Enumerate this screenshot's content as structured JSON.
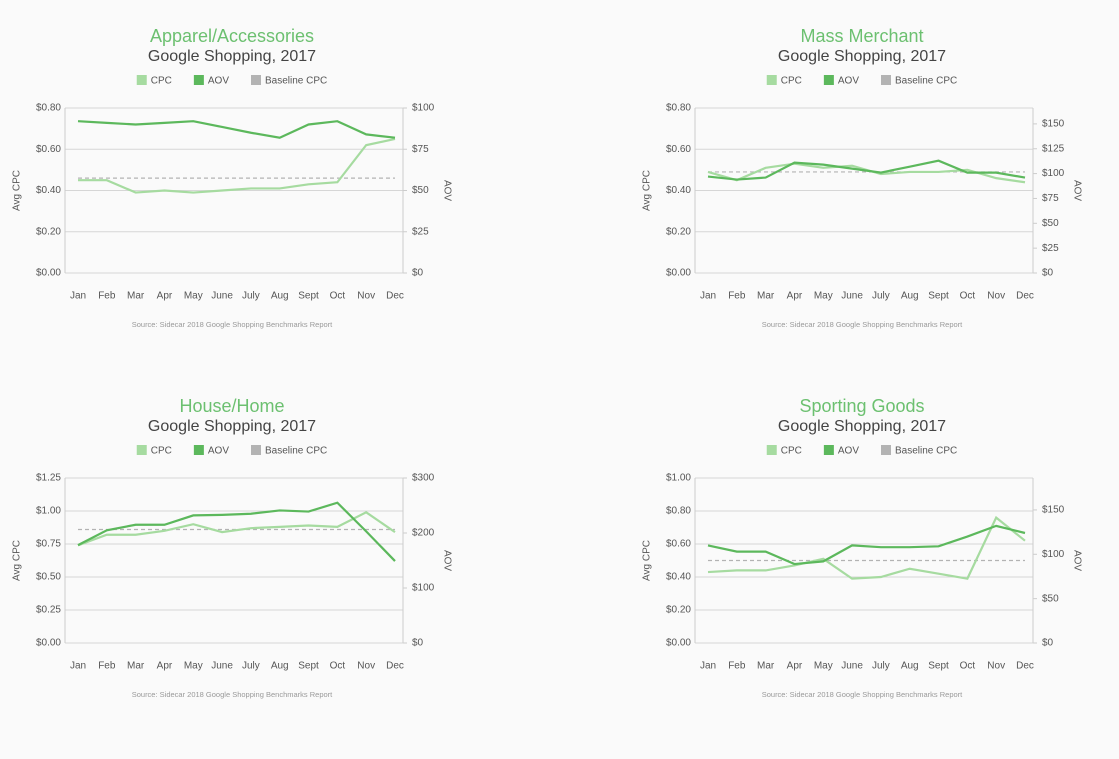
{
  "chart_data": [
    {
      "type": "line",
      "title": "Apparel/Accessories",
      "subtitle": "Google Shopping, 2017",
      "source": "Source: Sidecar 2018 Google Shopping Benchmarks Report",
      "ylabel": "Avg CPC",
      "y2label": "AOV",
      "grid": true,
      "categories": [
        "Jan",
        "Feb",
        "Mar",
        "Apr",
        "May",
        "June",
        "July",
        "Aug",
        "Sept",
        "Oct",
        "Nov",
        "Dec"
      ],
      "ylim": [
        0,
        0.8
      ],
      "yticks": [
        {
          "value": 0,
          "label": "$0.00"
        },
        {
          "value": 0.2,
          "label": "$0.20"
        },
        {
          "value": 0.4,
          "label": "$0.40"
        },
        {
          "value": 0.6,
          "label": "$0.60"
        },
        {
          "value": 0.8,
          "label": "$0.80"
        }
      ],
      "y2lim": [
        0,
        100
      ],
      "y2ticks": [
        {
          "value": 0,
          "label": "$0"
        },
        {
          "value": 25,
          "label": "$25"
        },
        {
          "value": 50,
          "label": "$50"
        },
        {
          "value": 75,
          "label": "$75"
        },
        {
          "value": 100,
          "label": "$100"
        }
      ],
      "series": [
        {
          "name": "CPC",
          "color": "#a6dba0",
          "values": [
            0.45,
            0.45,
            0.39,
            0.4,
            0.39,
            0.4,
            0.41,
            0.41,
            0.43,
            0.44,
            0.62,
            0.65
          ]
        },
        {
          "name": "AOV",
          "color": "#5cb85c",
          "axis": "y2",
          "values": [
            92,
            91,
            90,
            91,
            92,
            88.5,
            85,
            82,
            90,
            92,
            84,
            82
          ]
        },
        {
          "name": "Baseline CPC",
          "color": "#b3b3b3",
          "dashed": true,
          "values": [
            0.46,
            0.46,
            0.46,
            0.46,
            0.46,
            0.46,
            0.46,
            0.46,
            0.46,
            0.46,
            0.46,
            0.46
          ]
        }
      ]
    },
    {
      "type": "line",
      "title": "Mass Merchant",
      "subtitle": "Google Shopping, 2017",
      "source": "Source: Sidecar 2018 Google Shopping Benchmarks Report",
      "ylabel": "Avg CPC",
      "y2label": "AOV",
      "grid": true,
      "categories": [
        "Jan",
        "Feb",
        "Mar",
        "Apr",
        "May",
        "June",
        "July",
        "Aug",
        "Sept",
        "Oct",
        "Nov",
        "Dec"
      ],
      "ylim": [
        0,
        0.8
      ],
      "yticks": [
        {
          "value": 0,
          "label": "$0.00"
        },
        {
          "value": 0.2,
          "label": "$0.20"
        },
        {
          "value": 0.4,
          "label": "$0.40"
        },
        {
          "value": 0.6,
          "label": "$0.60"
        },
        {
          "value": 0.8,
          "label": "$0.80"
        }
      ],
      "y2lim": [
        0,
        166
      ],
      "y2ticks": [
        {
          "value": 0,
          "label": "$0"
        },
        {
          "value": 25,
          "label": "$25"
        },
        {
          "value": 50,
          "label": "$50"
        },
        {
          "value": 75,
          "label": "$75"
        },
        {
          "value": 100,
          "label": "$100"
        },
        {
          "value": 125,
          "label": "$125"
        },
        {
          "value": 150,
          "label": "$150"
        }
      ],
      "series": [
        {
          "name": "CPC",
          "color": "#a6dba0",
          "values": [
            0.49,
            0.45,
            0.51,
            0.53,
            0.51,
            0.52,
            0.48,
            0.49,
            0.49,
            0.5,
            0.46,
            0.44
          ]
        },
        {
          "name": "AOV",
          "color": "#5cb85c",
          "axis": "y2",
          "values": [
            97,
            94,
            96,
            111,
            109,
            105,
            101,
            107,
            113,
            101,
            101,
            96
          ]
        },
        {
          "name": "Baseline CPC",
          "color": "#b3b3b3",
          "dashed": true,
          "values": [
            0.49,
            0.49,
            0.49,
            0.49,
            0.49,
            0.49,
            0.49,
            0.49,
            0.49,
            0.49,
            0.49,
            0.49
          ]
        }
      ]
    },
    {
      "type": "line",
      "title": "House/Home",
      "subtitle": "Google Shopping, 2017",
      "source": "Source: Sidecar 2018 Google Shopping Benchmarks Report",
      "ylabel": "Avg CPC",
      "y2label": "AOV",
      "grid": true,
      "categories": [
        "Jan",
        "Feb",
        "Mar",
        "Apr",
        "May",
        "June",
        "July",
        "Aug",
        "Sept",
        "Oct",
        "Nov",
        "Dec"
      ],
      "ylim": [
        0,
        1.25
      ],
      "yticks": [
        {
          "value": 0,
          "label": "$0.00"
        },
        {
          "value": 0.25,
          "label": "$0.25"
        },
        {
          "value": 0.5,
          "label": "$0.50"
        },
        {
          "value": 0.75,
          "label": "$0.75"
        },
        {
          "value": 1,
          "label": "$1.00"
        },
        {
          "value": 1.25,
          "label": "$1.25"
        }
      ],
      "y2lim": [
        0,
        300
      ],
      "y2ticks": [
        {
          "value": 0,
          "label": "$0"
        },
        {
          "value": 100,
          "label": "$100"
        },
        {
          "value": 200,
          "label": "$200"
        },
        {
          "value": 300,
          "label": "$300"
        }
      ],
      "series": [
        {
          "name": "CPC",
          "color": "#a6dba0",
          "values": [
            0.74,
            0.82,
            0.82,
            0.85,
            0.9,
            0.84,
            0.87,
            0.88,
            0.89,
            0.88,
            0.99,
            0.84
          ]
        },
        {
          "name": "AOV",
          "color": "#5cb85c",
          "axis": "y2",
          "values": [
            178,
            205,
            215,
            215,
            232,
            233,
            235,
            241,
            239,
            255,
            203,
            149
          ]
        },
        {
          "name": "Baseline CPC",
          "color": "#b3b3b3",
          "dashed": true,
          "values": [
            0.86,
            0.86,
            0.86,
            0.86,
            0.86,
            0.86,
            0.86,
            0.86,
            0.86,
            0.86,
            0.86,
            0.86
          ]
        }
      ]
    },
    {
      "type": "line",
      "title": "Sporting Goods",
      "subtitle": "Google Shopping, 2017",
      "source": "Source: Sidecar 2018 Google Shopping Benchmarks Report",
      "ylabel": "Avg CPC",
      "y2label": "AOV",
      "grid": true,
      "categories": [
        "Jan",
        "Feb",
        "Mar",
        "Apr",
        "May",
        "June",
        "July",
        "Aug",
        "Sept",
        "Oct",
        "Nov",
        "Dec"
      ],
      "ylim": [
        0,
        1
      ],
      "yticks": [
        {
          "value": 0,
          "label": "$0.00"
        },
        {
          "value": 0.2,
          "label": "$0.20"
        },
        {
          "value": 0.4,
          "label": "$0.40"
        },
        {
          "value": 0.6,
          "label": "$0.60"
        },
        {
          "value": 0.8,
          "label": "$0.80"
        },
        {
          "value": 1,
          "label": "$1.00"
        }
      ],
      "y2lim": [
        0,
        186
      ],
      "y2ticks": [
        {
          "value": 0,
          "label": "$0"
        },
        {
          "value": 50,
          "label": "$50"
        },
        {
          "value": 100,
          "label": "$100"
        },
        {
          "value": 150,
          "label": "$150"
        }
      ],
      "series": [
        {
          "name": "CPC",
          "color": "#a6dba0",
          "values": [
            0.43,
            0.44,
            0.44,
            0.47,
            0.51,
            0.39,
            0.4,
            0.45,
            0.42,
            0.39,
            0.76,
            0.62
          ]
        },
        {
          "name": "AOV",
          "color": "#5cb85c",
          "axis": "y2",
          "values": [
            110,
            103,
            103,
            89,
            92,
            110,
            108,
            108,
            109,
            120,
            132,
            124
          ]
        },
        {
          "name": "Baseline CPC",
          "color": "#b3b3b3",
          "dashed": true,
          "values": [
            0.5,
            0.5,
            0.5,
            0.5,
            0.5,
            0.5,
            0.5,
            0.5,
            0.5,
            0.5,
            0.5,
            0.5
          ]
        }
      ]
    }
  ]
}
